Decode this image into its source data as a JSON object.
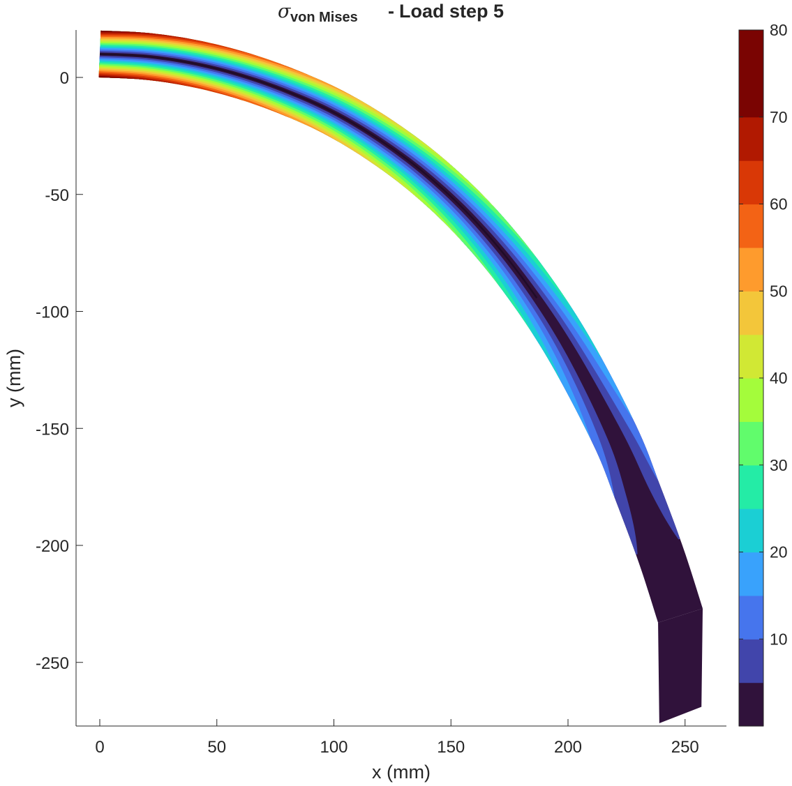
{
  "chart_data": {
    "type": "heatmap",
    "title": {
      "symbol": "σ",
      "subscript": "von Mises",
      "separator": "-",
      "text": "Load step 5"
    },
    "xlabel": "x (mm)",
    "ylabel": "y (mm)",
    "xlim": [
      -10,
      268
    ],
    "ylim": [
      -275,
      20
    ],
    "x_ticks": [
      0,
      50,
      100,
      150,
      200,
      250
    ],
    "y_ticks": [
      0,
      -50,
      -100,
      -150,
      -200,
      -250
    ],
    "x_tick_labels": [
      "0",
      "50",
      "100",
      "150",
      "200",
      "250"
    ],
    "y_tick_labels": [
      "0",
      "-50",
      "-100",
      "-150",
      "-200",
      "-250"
    ],
    "beam": {
      "centerline": [
        [
          0,
          10
        ],
        [
          20,
          9
        ],
        [
          40,
          6
        ],
        [
          60,
          1
        ],
        [
          80,
          -6
        ],
        [
          100,
          -15
        ],
        [
          120,
          -27
        ],
        [
          140,
          -42
        ],
        [
          160,
          -61
        ],
        [
          180,
          -85
        ],
        [
          200,
          -115
        ],
        [
          220,
          -153
        ],
        [
          230,
          -178
        ],
        [
          240,
          -205
        ],
        [
          248,
          -230
        ]
      ],
      "half_width_root": 10,
      "end_section": {
        "upper_corner": [
          257,
          -269
        ],
        "lower_corner": [
          239,
          -276
        ]
      },
      "contour": "von Mises stress, highest (red) at outer fibers near the root, lowest (dark) along the neutral axis and at the free end"
    },
    "colorbar": {
      "min": 0,
      "max": 80,
      "tick_values": [
        10,
        20,
        30,
        40,
        50,
        60,
        70,
        80
      ],
      "tick_labels": [
        "10",
        "20",
        "30",
        "40",
        "50",
        "60",
        "70",
        "80"
      ],
      "levels": 16,
      "colors": [
        "#30123b",
        "#4145ab",
        "#4675ed",
        "#39a2fc",
        "#1bcfd4",
        "#24eca6",
        "#61fc6c",
        "#a4fc3b",
        "#d1e834",
        "#f3c63a",
        "#fe9b2d",
        "#f36315",
        "#d93806",
        "#b11901",
        "#7a0402",
        "#7a0402"
      ]
    }
  }
}
